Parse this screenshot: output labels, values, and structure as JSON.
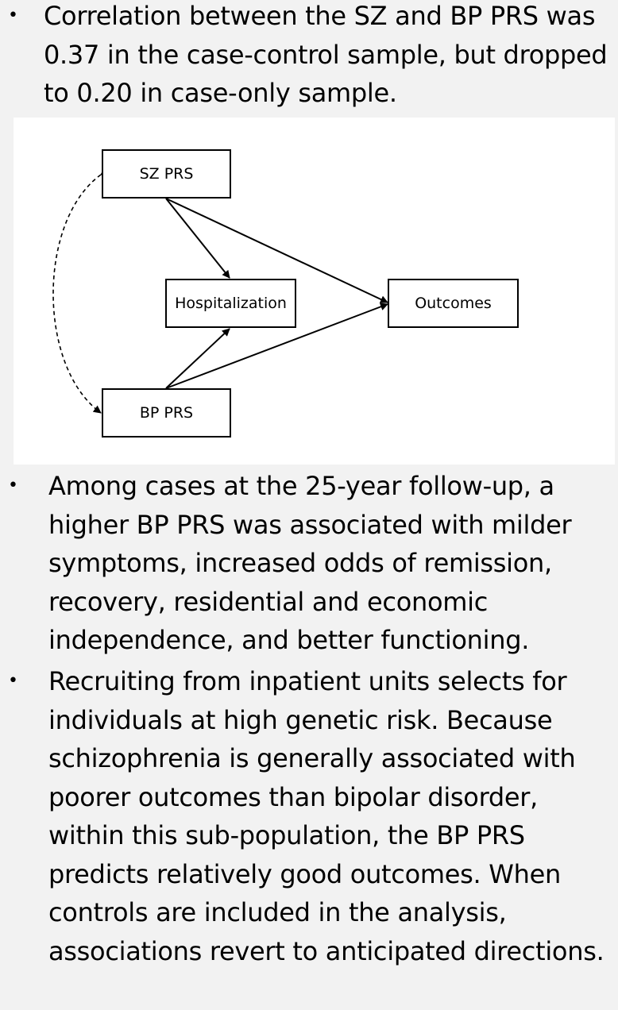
{
  "bullets": [
    {
      "marker": "•",
      "text": "Correlation between the SZ and BP PRS was 0.37 in the case-control sample, but dropped to 0.20 in case-only sample."
    },
    {
      "marker": "•",
      "text": "Among cases at the 25-year follow-up, a higher BP PRS was associated with milder symptoms, increased odds of remission, recovery, residential and economic independence, and better functioning."
    },
    {
      "marker": "•",
      "text": "Recruiting from inpatient units selects for individuals at high genetic risk. Because schizophrenia is generally associated with poorer outcomes than bipolar disorder, within this sub-population, the BP PRS predicts relatively good outcomes. When controls are included in the analysis, associations revert to anticipated directions."
    }
  ],
  "diagram": {
    "nodes": {
      "sz": "SZ PRS",
      "hospitalization": "Hospitalization",
      "outcomes": "Outcomes",
      "bp": "BP PRS"
    },
    "edges": [
      {
        "from": "SZ PRS",
        "to": "Hospitalization",
        "style": "solid"
      },
      {
        "from": "SZ PRS",
        "to": "Outcomes",
        "style": "solid"
      },
      {
        "from": "BP PRS",
        "to": "Hospitalization",
        "style": "solid"
      },
      {
        "from": "BP PRS",
        "to": "Outcomes",
        "style": "solid"
      },
      {
        "from": "SZ PRS",
        "to": "BP PRS",
        "style": "dashed",
        "bidirectional": true
      }
    ],
    "colors": {
      "line": "#000000",
      "panel": "#ffffff",
      "page": "#f2f2f2"
    }
  }
}
